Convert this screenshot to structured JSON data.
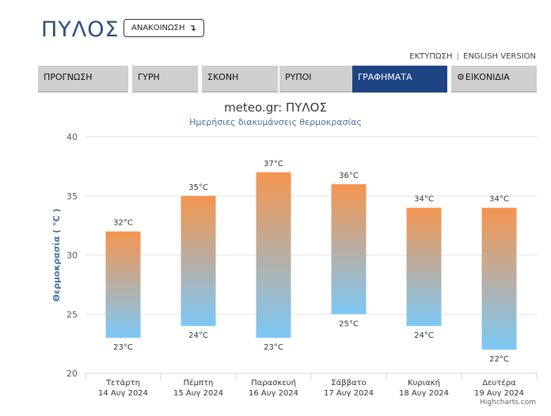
{
  "header": {
    "title": "ΠΥΛΟΣ",
    "announce_label": "ΑΝΑΚΟΙΝΩΣΗ",
    "announce_icon": "arrow-down-icon"
  },
  "links": {
    "print": "ΕΚΤΥΠΩΣΗ",
    "separator": "|",
    "english": "ENGLISH VERSION"
  },
  "tabs": [
    {
      "label": "ΠΡΟΓΝΩΣΗ",
      "active": false
    },
    {
      "label": "ΓΥΡΗ",
      "active": false
    },
    {
      "label": "ΣΚΟΝΗ",
      "active": false
    },
    {
      "label": "ΡΥΠΟΙ",
      "active": false
    },
    {
      "label": "ΓΡΑΦΗΜΑΤΑ",
      "active": true
    },
    {
      "label": "ΕΙΚΟΝΙΔΙΑ",
      "active": false,
      "icon": "gear-icon"
    }
  ],
  "colors": {
    "accent": "#1f4484",
    "bar_top": "#f59550",
    "bar_bottom": "#7cc8f6"
  },
  "chart_data": {
    "type": "bar",
    "title": "meteo.gr: ΠΥΛΟΣ",
    "subtitle": "Ημερήσιες διακυμάνσεις θερμοκρασίας",
    "ylabel": "Θερμοκρασία ( °C )",
    "ylim": [
      20,
      40
    ],
    "yticks": [
      20,
      25,
      30,
      35,
      40
    ],
    "unit": "°C",
    "grid": true,
    "categories": [
      {
        "day": "Τετάρτη",
        "date": "14 Αυγ 2024"
      },
      {
        "day": "Πέμπτη",
        "date": "15 Αυγ 2024"
      },
      {
        "day": "Παρασκευή",
        "date": "16 Αυγ 2024"
      },
      {
        "day": "Σάββατο",
        "date": "17 Αυγ 2024"
      },
      {
        "day": "Κυριακή",
        "date": "18 Αυγ 2024"
      },
      {
        "day": "Δευτέρα",
        "date": "19 Αυγ 2024"
      }
    ],
    "min": [
      23,
      24,
      23,
      25,
      24,
      22
    ],
    "max": [
      32,
      35,
      37,
      36,
      34,
      34
    ]
  },
  "credit": "Highcharts.com"
}
